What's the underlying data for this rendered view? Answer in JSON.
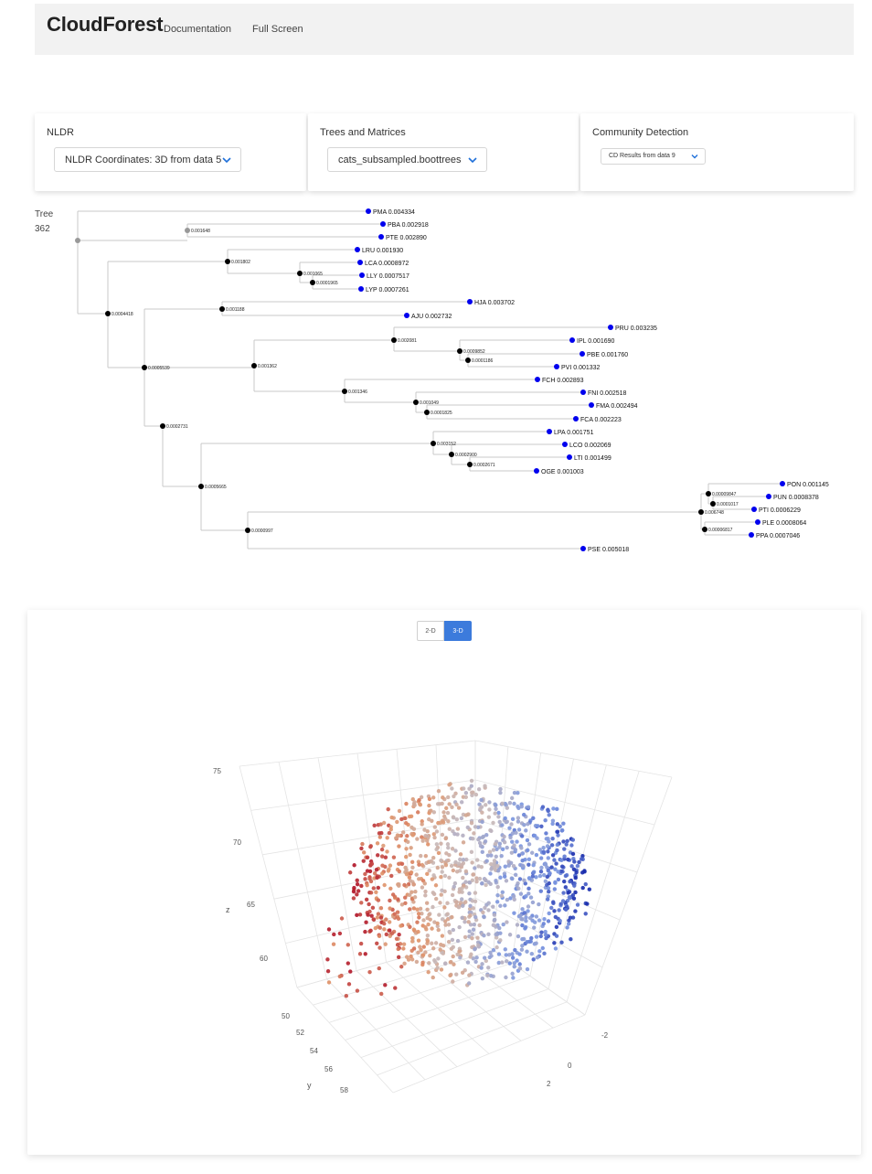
{
  "navbar": {
    "brand": "CloudForest",
    "links": [
      "Documentation",
      "Full Screen"
    ]
  },
  "panels": {
    "nldr": {
      "title": "NLDR",
      "selected": "NLDR Coordinates: 3D from data 5"
    },
    "trees": {
      "title": "Trees and Matrices",
      "selected": "cats_subsampled.boottrees"
    },
    "community": {
      "title": "Community Detection",
      "selected": "CD Results from data 9"
    }
  },
  "tree": {
    "label": "Tree",
    "number": "362",
    "leaves": [
      {
        "name": "PMA",
        "length": "0.004334"
      },
      {
        "name": "PBA",
        "length": "0.002918"
      },
      {
        "name": "PTE",
        "length": "0.002890"
      },
      {
        "name": "LRU",
        "length": "0.001930"
      },
      {
        "name": "LCA",
        "length": "0.0008972"
      },
      {
        "name": "LLY",
        "length": "0.0007517"
      },
      {
        "name": "LYP",
        "length": "0.0007261"
      },
      {
        "name": "HJA",
        "length": "0.003702"
      },
      {
        "name": "AJU",
        "length": "0.002732"
      },
      {
        "name": "PRU",
        "length": "0.003235"
      },
      {
        "name": "IPL",
        "length": "0.001690"
      },
      {
        "name": "PBE",
        "length": "0.001760"
      },
      {
        "name": "PVI",
        "length": "0.001332"
      },
      {
        "name": "FCH",
        "length": "0.002893"
      },
      {
        "name": "FNI",
        "length": "0.002518"
      },
      {
        "name": "FMA",
        "length": "0.002494"
      },
      {
        "name": "FCA",
        "length": "0.002223"
      },
      {
        "name": "LPA",
        "length": "0.001751"
      },
      {
        "name": "LCO",
        "length": "0.002069"
      },
      {
        "name": "LTI",
        "length": "0.001499"
      },
      {
        "name": "OGE",
        "length": "0.001003"
      },
      {
        "name": "PON",
        "length": "0.001145"
      },
      {
        "name": "PUN",
        "length": "0.0008378"
      },
      {
        "name": "PTI",
        "length": "0.0006229"
      },
      {
        "name": "PLE",
        "length": "0.0008064"
      },
      {
        "name": "PPA",
        "length": "0.0007046"
      },
      {
        "name": "PSE",
        "length": "0.005018"
      }
    ],
    "internal_labels": [
      "0.001648",
      "0.001802",
      "0.001065",
      "0.0001965",
      "0.0004418",
      "0.001188",
      "0.0005539",
      "0.002081",
      "0.001362",
      "0.0009852",
      "0.0001186",
      "0.001346",
      "0.001049",
      "0.0001825",
      "0.0002731",
      "0.003152",
      "0.0002900",
      "0.0002671",
      "0.0005665",
      "0.0000997",
      "0.00009847",
      "0.0001017",
      "0.006748",
      "0.00006817"
    ],
    "colors": {
      "leaf_node": "#0000ee",
      "internal_node": "#000000",
      "root_node": "#999999",
      "branch": "#c8c8c8"
    }
  },
  "plot": {
    "toggle_2d": "2-D",
    "toggle_3d": "3-D",
    "active_mode": "3-D",
    "z_ticks": [
      "75",
      "70",
      "65",
      "60"
    ],
    "z_label": "z",
    "y_ticks": [
      "50",
      "52",
      "54",
      "56",
      "58"
    ],
    "y_label": "y",
    "x_ticks": [
      "-2",
      "0",
      "2"
    ],
    "point_color_scale": [
      "#b2182b",
      "#e0946a",
      "#c8b8b8",
      "#7a96e0",
      "#1a2eae"
    ]
  }
}
